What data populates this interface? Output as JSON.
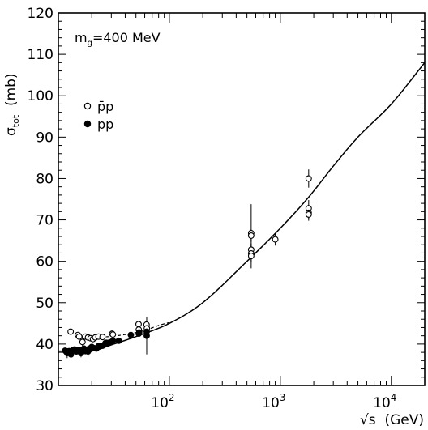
{
  "chart_data": {
    "type": "scatter",
    "title": "",
    "annotation": {
      "main": "m",
      "sub": "g",
      "rest": "=400 MeV"
    },
    "ylabel": {
      "main": "σ",
      "sub": "tot",
      "rest": "  (mb)"
    },
    "xlabel": "√s  (GeV)",
    "x_scale": "log",
    "xlim": [
      10,
      20000
    ],
    "ylim": [
      30,
      120
    ],
    "y_ticks": [
      30,
      40,
      50,
      60,
      70,
      80,
      90,
      100,
      110,
      120
    ],
    "x_tick_labels": [
      {
        "base": "10",
        "exp": "2",
        "value": 100
      },
      {
        "base": "10",
        "exp": "3",
        "value": 1000
      },
      {
        "base": "10",
        "exp": "4",
        "value": 10000
      }
    ],
    "grid": false,
    "legend_position": "top-left",
    "legend": [
      {
        "name": "p̄p",
        "marker": "open-circle"
      },
      {
        "name": "pp",
        "marker": "filled-circle"
      }
    ],
    "series": [
      {
        "name": "p̄p",
        "marker": "open-circle",
        "points": [
          [
            12.9,
            43.0
          ],
          [
            15.0,
            42.2
          ],
          [
            15.4,
            41.8
          ],
          [
            16.5,
            40.5
          ],
          [
            17.5,
            41.8
          ],
          [
            18.5,
            41.6
          ],
          [
            19.5,
            41.4
          ],
          [
            20.5,
            41.2
          ],
          [
            21.5,
            41.6
          ],
          [
            23.0,
            41.8
          ],
          [
            25.0,
            41.7
          ],
          [
            30.5,
            42.5
          ],
          [
            31.0,
            42.3
          ],
          [
            52.8,
            44.8
          ],
          [
            53.0,
            43.5
          ],
          [
            62.3,
            44.7
          ],
          [
            62.7,
            43.8
          ],
          [
            546,
            66.8
          ],
          [
            546,
            66.2
          ],
          [
            546,
            62.8
          ],
          [
            546,
            61.9
          ],
          [
            546,
            61.3
          ],
          [
            900,
            65.3
          ],
          [
            1800,
            80.0
          ],
          [
            1800,
            72.8
          ],
          [
            1800,
            71.7
          ],
          [
            1800,
            71.3
          ]
        ],
        "errors": [
          0.5,
          0.4,
          0.4,
          1.0,
          0.4,
          0.4,
          0.4,
          0.4,
          0.4,
          0.4,
          0.4,
          0.5,
          0.5,
          0.8,
          0.8,
          1.0,
          1.2,
          7.0,
          1.5,
          1.5,
          1.5,
          3.0,
          1.5,
          2.2,
          2.0,
          1.5,
          1.5
        ]
      },
      {
        "name": "pp",
        "marker": "filled-circle",
        "points": [
          [
            11.5,
            38.4
          ],
          [
            11.8,
            38.2
          ],
          [
            12.0,
            37.8
          ],
          [
            12.5,
            38.3
          ],
          [
            13.0,
            37.5
          ],
          [
            13.5,
            38.5
          ],
          [
            14.0,
            38.7
          ],
          [
            14.5,
            38.2
          ],
          [
            15.0,
            38.6
          ],
          [
            15.5,
            38.5
          ],
          [
            16.0,
            37.8
          ],
          [
            16.5,
            38.6
          ],
          [
            17.0,
            38.9
          ],
          [
            17.5,
            38.3
          ],
          [
            18.0,
            38.6
          ],
          [
            18.5,
            38.2
          ],
          [
            19.0,
            38.9
          ],
          [
            19.5,
            38.8
          ],
          [
            20.0,
            39.3
          ],
          [
            21.0,
            39.0
          ],
          [
            22.0,
            38.9
          ],
          [
            23.0,
            39.5
          ],
          [
            24.0,
            39.6
          ],
          [
            25.0,
            39.6
          ],
          [
            26.5,
            40.2
          ],
          [
            27.0,
            40.3
          ],
          [
            28.5,
            40.3
          ],
          [
            30.0,
            40.5
          ],
          [
            31.0,
            40.8
          ],
          [
            35.0,
            40.8
          ],
          [
            45.0,
            42.2
          ],
          [
            53.0,
            42.5
          ],
          [
            53.5,
            42.8
          ],
          [
            62.5,
            43.0
          ],
          [
            62.5,
            42.0
          ]
        ],
        "errors": [
          0.3,
          0.3,
          1.2,
          0.3,
          0.3,
          0.3,
          0.3,
          0.3,
          0.3,
          0.3,
          1.0,
          0.3,
          0.3,
          0.8,
          0.3,
          1.2,
          0.3,
          0.3,
          0.3,
          0.3,
          0.3,
          0.3,
          0.3,
          0.3,
          0.3,
          0.3,
          0.3,
          0.3,
          0.3,
          0.3,
          0.4,
          0.4,
          0.4,
          0.5,
          4.5
        ]
      }
    ],
    "curves": [
      {
        "name": "",
        "style": "solid",
        "points": [
          [
            10,
            38.3
          ],
          [
            20,
            38.3
          ],
          [
            30,
            39.8
          ],
          [
            50,
            41.8
          ],
          [
            100,
            45.0
          ],
          [
            200,
            50.0
          ],
          [
            500,
            60.0
          ],
          [
            1000,
            68.0
          ],
          [
            1800,
            75.5
          ],
          [
            3000,
            83.0
          ],
          [
            5000,
            90.0
          ],
          [
            10000,
            98.0
          ],
          [
            20000,
            108.0
          ]
        ]
      },
      {
        "name": "",
        "style": "dashed",
        "points": [
          [
            15,
            41.9
          ],
          [
            25,
            41.7
          ],
          [
            40,
            42.3
          ],
          [
            60,
            43.3
          ],
          [
            80,
            44.5
          ],
          [
            100,
            45.2
          ]
        ]
      }
    ]
  }
}
